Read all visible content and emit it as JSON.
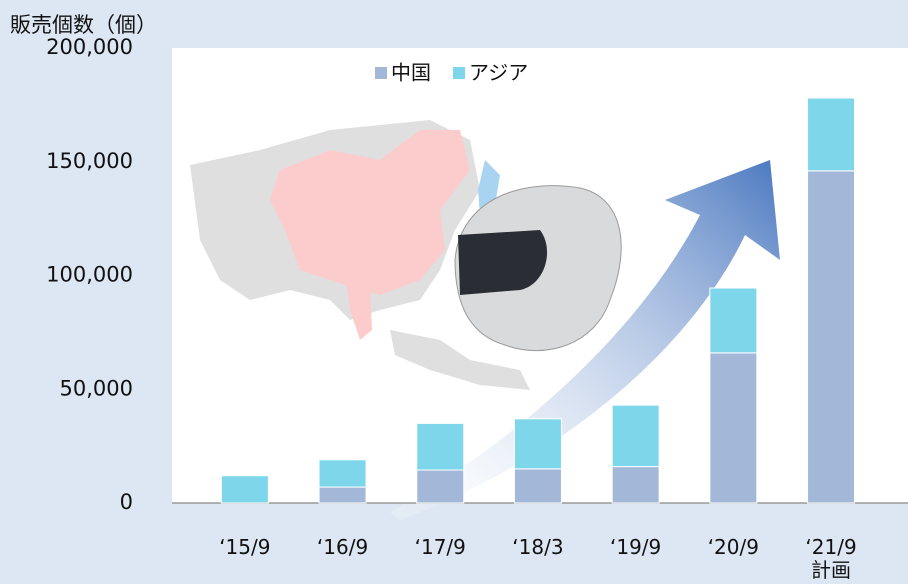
{
  "chart_data": {
    "type": "stacked-bar",
    "title": "販売個数（個）",
    "categories": [
      "‘15/9",
      "‘16/9",
      "‘17/9",
      "‘18/3",
      "‘19/9",
      "‘20/9",
      "‘21/9\n計画"
    ],
    "series": [
      {
        "name": "中国",
        "color": "#a3b8d9",
        "values": [
          0,
          7000,
          14500,
          15000,
          16000,
          66000,
          146000
        ]
      },
      {
        "name": "アジア",
        "color": "#7dd6ea",
        "values": [
          12000,
          12000,
          20500,
          22000,
          27000,
          28500,
          32000
        ]
      }
    ],
    "ylim": [
      0,
      200000
    ],
    "yticks": [
      0,
      {
        "value": 50000,
        "label": "50,000"
      },
      {
        "value": 100000,
        "label": "100,000"
      },
      {
        "value": 150000,
        "label": "150,000"
      },
      {
        "value": 200000,
        "label": "200,000"
      }
    ]
  }
}
